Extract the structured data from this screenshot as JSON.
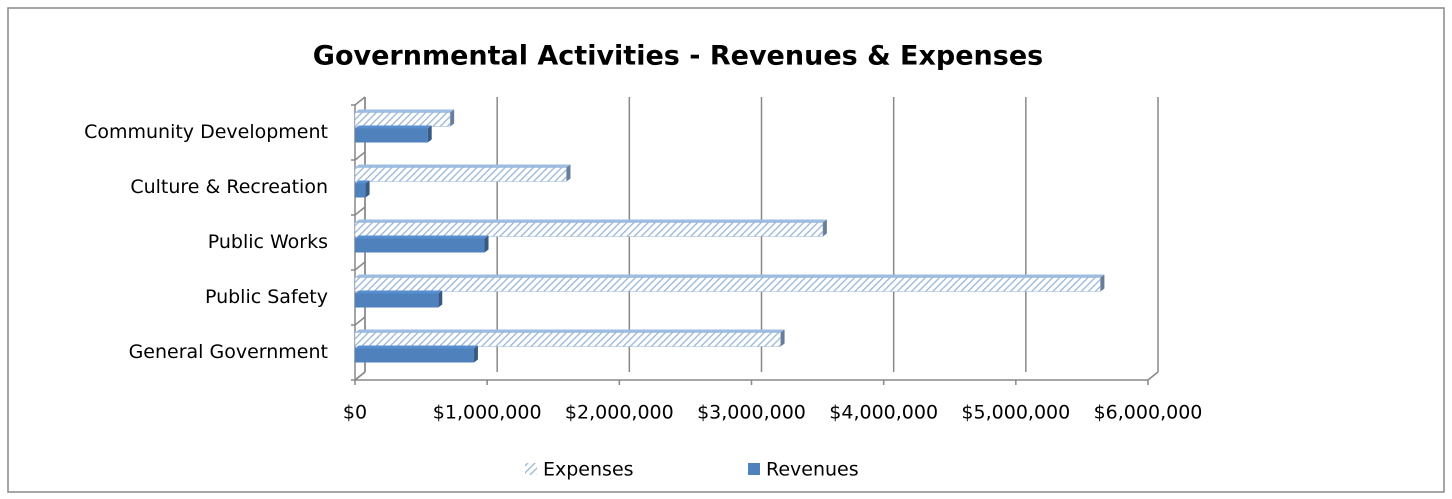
{
  "chart_data": {
    "type": "bar",
    "orientation": "horizontal",
    "title": "Governmental Activities - Revenues & Expenses",
    "categories": [
      "Community Development",
      "Culture & Recreation",
      "Public Works",
      "Public Safety",
      "General Government"
    ],
    "series": [
      {
        "name": "Expenses",
        "color": "#95b3d7",
        "values": [
          720000,
          1600000,
          3540000,
          5640000,
          3220000
        ]
      },
      {
        "name": "Revenues",
        "color": "#4f81bd",
        "values": [
          550000,
          80000,
          980000,
          630000,
          900000
        ]
      }
    ],
    "xlim": [
      0,
      6000000
    ],
    "xticks": [
      {
        "value": 0,
        "label": "$0"
      },
      {
        "value": 1000000,
        "label": "$1,000,000"
      },
      {
        "value": 2000000,
        "label": "$2,000,000"
      },
      {
        "value": 3000000,
        "label": "$3,000,000"
      },
      {
        "value": 4000000,
        "label": "$4,000,000"
      },
      {
        "value": 5000000,
        "label": "$5,000,000"
      },
      {
        "value": 6000000,
        "label": "$6,000,000"
      }
    ],
    "grid": true,
    "legend": "bottom"
  }
}
